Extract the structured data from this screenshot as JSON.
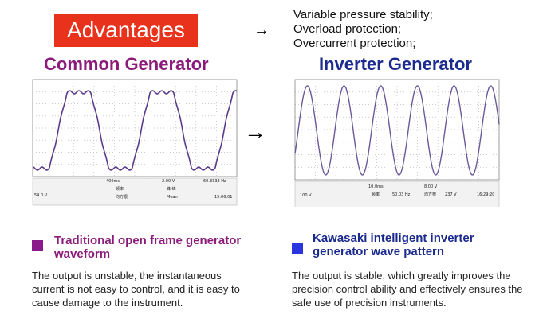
{
  "banner": {
    "title": "Advantages"
  },
  "features": [
    "Variable pressure stability;",
    "Overload protection;",
    "Overcurrent protection;"
  ],
  "left": {
    "heading": "Common Generator",
    "scope": {
      "timebase": "400ms",
      "volts": "2.00 V",
      "freq": "60.8333 Hz",
      "channel": "54.0 V",
      "m1": "频率",
      "m2": "峰-峰",
      "m3": "均方根",
      "m4": "Mean",
      "time": "15:06:01"
    },
    "caption": "Traditional open frame generator waveform",
    "description": "The output is unstable, the instantaneous current is not easy to control, and it is easy to cause damage to the instrument."
  },
  "right": {
    "heading": "Inverter Generator",
    "scope": {
      "timebase": "10.0ms",
      "volts": "8.00 V",
      "freq": "50.03 Hz",
      "channel": "100 V",
      "m1": "频率",
      "m3": "均方根",
      "rms": "237 V",
      "time": "16:29:20"
    },
    "caption": "Kawasaki intelligent inverter generator wave pattern",
    "description": "The output is stable, which greatly improves the precision control ability and effectively ensures the safe use of precision instruments."
  }
}
